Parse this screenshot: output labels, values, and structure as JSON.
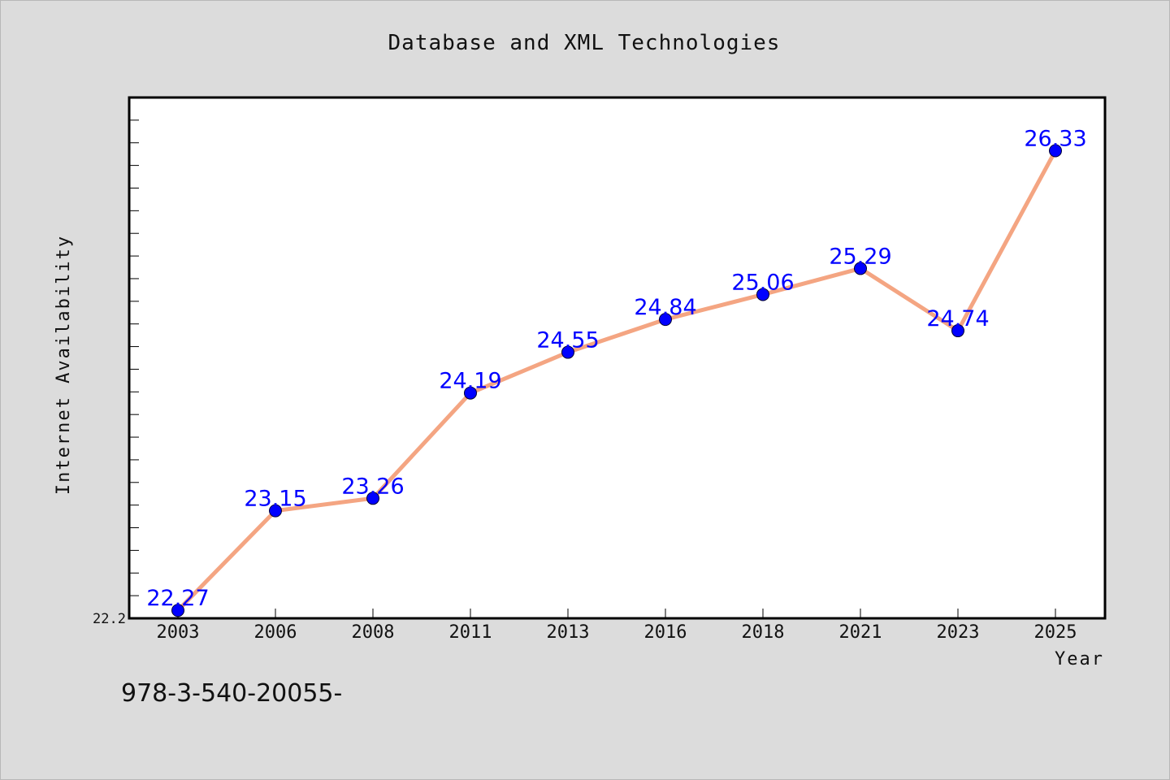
{
  "chart_data": {
    "type": "line",
    "title": "Database and XML Technologies",
    "xlabel": "Year",
    "ylabel": "Internet Availability",
    "categories": [
      "2003",
      "2006",
      "2008",
      "2011",
      "2013",
      "2016",
      "2018",
      "2021",
      "2023",
      "2025"
    ],
    "series": [
      {
        "values": [
          22.27,
          23.15,
          23.26,
          24.19,
          24.55,
          24.84,
          25.06,
          25.29,
          24.74,
          26.33
        ],
        "data_labels": [
          "22.27",
          "23.15",
          "23.26",
          "24.19",
          "24.55",
          "24.84",
          "25.06",
          "25.29",
          "24.74",
          "26.33"
        ]
      }
    ],
    "ylim": [
      22.2,
      26.8
    ],
    "ytick_labels": [
      "22.2"
    ],
    "grid": false,
    "colors": {
      "line": "#f4a582",
      "marker": "#0000ff",
      "data_label": "#0000ff",
      "plot_background": "#ffffff",
      "figure_background": "#dcdcdc"
    }
  },
  "footer": {
    "text": "978-3-540-20055-"
  }
}
